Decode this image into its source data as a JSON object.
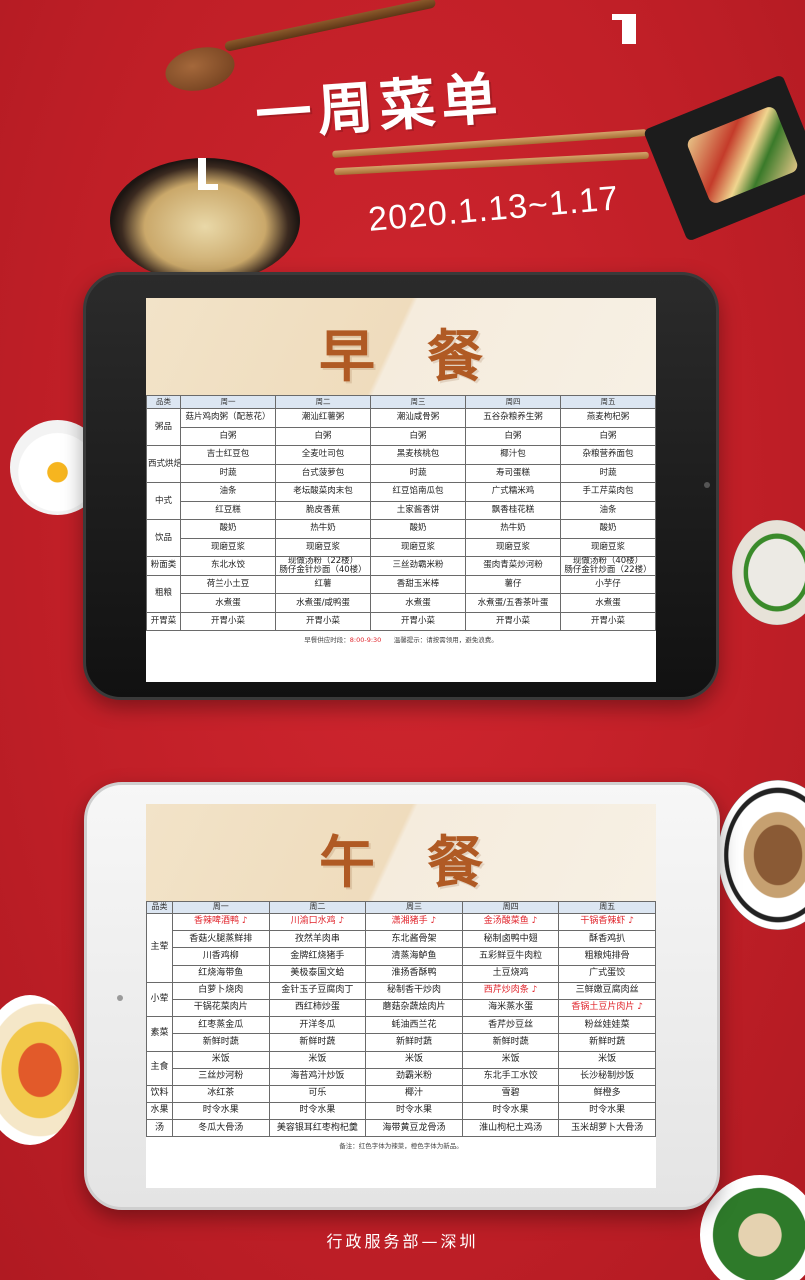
{
  "header": {
    "title": "一周菜单",
    "date_range": "2020.1.13~1.17"
  },
  "breakfast": {
    "title": "早餐",
    "columns": [
      "品类",
      "周一",
      "周二",
      "周三",
      "周四",
      "周五"
    ],
    "rows": [
      {
        "cat": "粥品",
        "span": 2,
        "cells": [
          "菇片鸡肉粥（配葱花）",
          "潮汕红薯粥",
          "潮汕咸骨粥",
          "五谷杂粮养生粥",
          "燕麦枸杞粥"
        ]
      },
      {
        "cells": [
          "白粥",
          "白粥",
          "白粥",
          "白粥",
          "白粥"
        ]
      },
      {
        "cat": "西式烘焙",
        "span": 2,
        "cells": [
          "吉士红豆包",
          "全麦吐司包",
          "黑麦核桃包",
          "椰汁包",
          "杂粮营养面包"
        ]
      },
      {
        "cells": [
          "时蔬",
          "台式菠萝包",
          "时蔬",
          "寿司蛋糕",
          "时蔬"
        ]
      },
      {
        "cat": "中式",
        "span": 2,
        "cells": [
          "油条",
          "老坛酸菜肉末包",
          "红豆馅南瓜包",
          "广式糯米鸡",
          "手工芹菜肉包"
        ]
      },
      {
        "cells": [
          "红豆糕",
          "脆皮香蕉",
          "土家酱香饼",
          "飘香桂花糕",
          "油条"
        ]
      },
      {
        "cat": "饮品",
        "span": 2,
        "cells": [
          "酸奶",
          "热牛奶",
          "酸奶",
          "热牛奶",
          "酸奶"
        ]
      },
      {
        "cells": [
          "现磨豆浆",
          "现磨豆浆",
          "现磨豆浆",
          "现磨豆浆",
          "现磨豆浆"
        ]
      },
      {
        "cat": "粉面类",
        "span": 1,
        "double": true,
        "cells": [
          "东北水饺",
          "现做汤粉（22楼）\n肠仔金针炒面（40楼）",
          "三丝劲霸米粉",
          "蛋肉青菜炒河粉",
          "现做汤粉（40楼）\n肠仔金针炒面（22楼）"
        ]
      },
      {
        "cat": "粗粮",
        "span": 2,
        "cells": [
          "荷兰小土豆",
          "红薯",
          "香甜玉米棒",
          "薯仔",
          "小芋仔"
        ]
      },
      {
        "cells": [
          "水煮蛋",
          "水煮蛋/咸鸭蛋",
          "水煮蛋",
          "水煮蛋/五香茶叶蛋",
          "水煮蛋"
        ]
      },
      {
        "cat": "开胃菜",
        "span": 1,
        "cells": [
          "开胃小菜",
          "开胃小菜",
          "开胃小菜",
          "开胃小菜",
          "开胃小菜"
        ]
      }
    ],
    "footnote_label": "早餐供应时段：",
    "footnote_time": "8:00-9:30",
    "footnote_tip": "温馨提示：请按需领用，避免浪费。"
  },
  "lunch": {
    "title": "午餐",
    "columns": [
      "品类",
      "周一",
      "周二",
      "周三",
      "周四",
      "周五"
    ],
    "rows": [
      {
        "cat": "主荤",
        "span": 4,
        "cells": [
          {
            "t": "香辣啤酒鸭",
            "red": true,
            "chili": true
          },
          {
            "t": "川渝口水鸡",
            "red": true,
            "chili": true
          },
          {
            "t": "潇湘猪手",
            "red": true,
            "chili": true
          },
          {
            "t": "金汤酸菜鱼",
            "red": true,
            "chili": true
          },
          {
            "t": "干锅香辣虾",
            "red": true,
            "chili": true
          }
        ]
      },
      {
        "cells": [
          {
            "t": "香菇火腿蒸鲜排"
          },
          {
            "t": "孜然羊肉串"
          },
          {
            "t": "东北酱骨架"
          },
          {
            "t": "秘制卤鸭中翅"
          },
          {
            "t": "酥香鸡扒"
          }
        ]
      },
      {
        "cells": [
          {
            "t": "川香鸡柳"
          },
          {
            "t": "金牌红烧猪手"
          },
          {
            "t": "清蒸海鲈鱼"
          },
          {
            "t": "五彩鲜豆牛肉粒"
          },
          {
            "t": "粗粮炖排骨"
          }
        ]
      },
      {
        "cells": [
          {
            "t": "红烧海带鱼"
          },
          {
            "t": "美极泰国文蛤"
          },
          {
            "t": "淮扬香酥鸭"
          },
          {
            "t": "土豆烧鸡"
          },
          {
            "t": "广式蛋饺"
          }
        ]
      },
      {
        "cat": "小荤",
        "span": 2,
        "cells": [
          {
            "t": "白萝卜烧肉"
          },
          {
            "t": "金针玉子豆腐肉丁"
          },
          {
            "t": "秘制香干炒肉"
          },
          {
            "t": "西芹炒肉条",
            "red": true,
            "chili": true
          },
          {
            "t": "三鲜嫩豆腐肉丝"
          }
        ]
      },
      {
        "cells": [
          {
            "t": "干锅花菜肉片"
          },
          {
            "t": "西红柿炒蛋"
          },
          {
            "t": "蘑菇杂蔬烩肉片"
          },
          {
            "t": "海米蒸水蛋"
          },
          {
            "t": "香锅土豆片肉片",
            "red": true,
            "chili": true
          }
        ]
      },
      {
        "cat": "素菜",
        "span": 2,
        "cells": [
          {
            "t": "红枣蒸金瓜"
          },
          {
            "t": "开洋冬瓜"
          },
          {
            "t": "蚝油西兰花"
          },
          {
            "t": "香芹炒豆丝"
          },
          {
            "t": "粉丝娃娃菜"
          }
        ]
      },
      {
        "cells": [
          {
            "t": "新鲜时蔬"
          },
          {
            "t": "新鲜时蔬"
          },
          {
            "t": "新鲜时蔬"
          },
          {
            "t": "新鲜时蔬"
          },
          {
            "t": "新鲜时蔬"
          }
        ]
      },
      {
        "cat": "主食",
        "span": 2,
        "cells": [
          {
            "t": "米饭"
          },
          {
            "t": "米饭"
          },
          {
            "t": "米饭"
          },
          {
            "t": "米饭"
          },
          {
            "t": "米饭"
          }
        ]
      },
      {
        "cells": [
          {
            "t": "三丝炒河粉"
          },
          {
            "t": "海苔鸡汁炒饭"
          },
          {
            "t": "劲霸米粉"
          },
          {
            "t": "东北手工水饺"
          },
          {
            "t": "长沙秘制炒饭"
          }
        ]
      },
      {
        "cat": "饮料",
        "span": 1,
        "cells": [
          {
            "t": "冰红茶"
          },
          {
            "t": "可乐"
          },
          {
            "t": "椰汁"
          },
          {
            "t": "雪碧"
          },
          {
            "t": "鲜橙多"
          }
        ]
      },
      {
        "cat": "水果",
        "span": 1,
        "cells": [
          {
            "t": "时令水果"
          },
          {
            "t": "时令水果"
          },
          {
            "t": "时令水果"
          },
          {
            "t": "时令水果"
          },
          {
            "t": "时令水果"
          }
        ]
      },
      {
        "cat": "汤",
        "span": 1,
        "cells": [
          {
            "t": "冬瓜大骨汤"
          },
          {
            "t": "美容银耳红枣枸杞羹"
          },
          {
            "t": "海带黄豆龙骨汤"
          },
          {
            "t": "淮山枸杞土鸡汤"
          },
          {
            "t": "玉米胡萝卜大骨汤"
          }
        ]
      }
    ],
    "footnote": "备注：红色字体为辣菜，橙色字体为新品。"
  },
  "footer": {
    "text": "行政服务部—深圳"
  },
  "colors": {
    "background": "#c8242c",
    "header_row": "#dce6f2",
    "banner_title": "#b05a24",
    "spicy": "#e0242b"
  },
  "icons": [
    "chili-icon"
  ]
}
